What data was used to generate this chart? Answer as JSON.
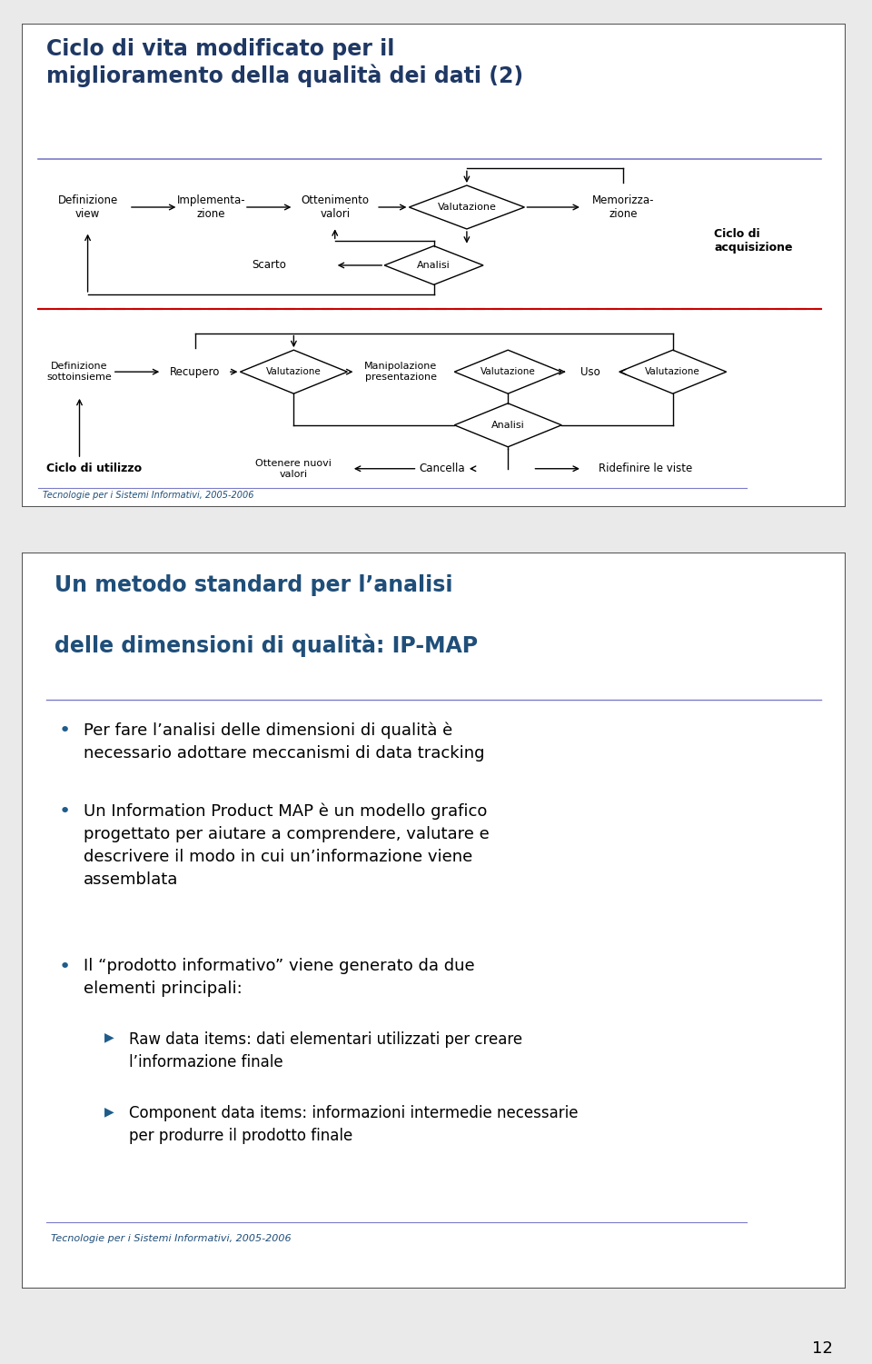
{
  "slide1_title": "Ciclo di vita modificato per il\nmiglioramento della qualità dei dati (2)",
  "slide1_title_color": "#1F3864",
  "slide2_title_line1": "Un metodo standard per l’analisi",
  "slide2_title_line2": "delle dimensioni di qualità: IP-MAP",
  "slide2_title_color": "#1F4E79",
  "bg_color": "#EAEAEA",
  "slide_bg": "#FFFFFF",
  "border_color": "#555555",
  "dashed_line_color": "#CC0000",
  "footer_text": "Tecnologie per i Sistemi Informativi, 2005-2006",
  "footer_color": "#1F4E79",
  "page_number": "12",
  "bullet_color": "#1F5C8B",
  "text_color": "#000000",
  "diamond_fill": "#FFFFFF",
  "diamond_edge": "#000000",
  "arrow_color": "#000000",
  "line_color": "#000000",
  "underline_color": "#7B7BC8",
  "bullet1": "Per fare l’analisi delle dimensioni di qualità è\nnecessario adottare meccanismi di data tracking",
  "bullet2": "Un Information Product MAP è un modello grafico\nprogettato per aiutare a comprendere, valutare e\ndescrivere il modo in cui un’informazione viene\nassemblata",
  "bullet3": "Il “prodotto informativo” viene generato da due\nelementi principali:",
  "sub1": "Raw data items: dati elementari utilizzati per creare\nl’informazione finale",
  "sub2": "Component data items: informazioni intermedie necessarie\nper produrre il prodotto finale"
}
